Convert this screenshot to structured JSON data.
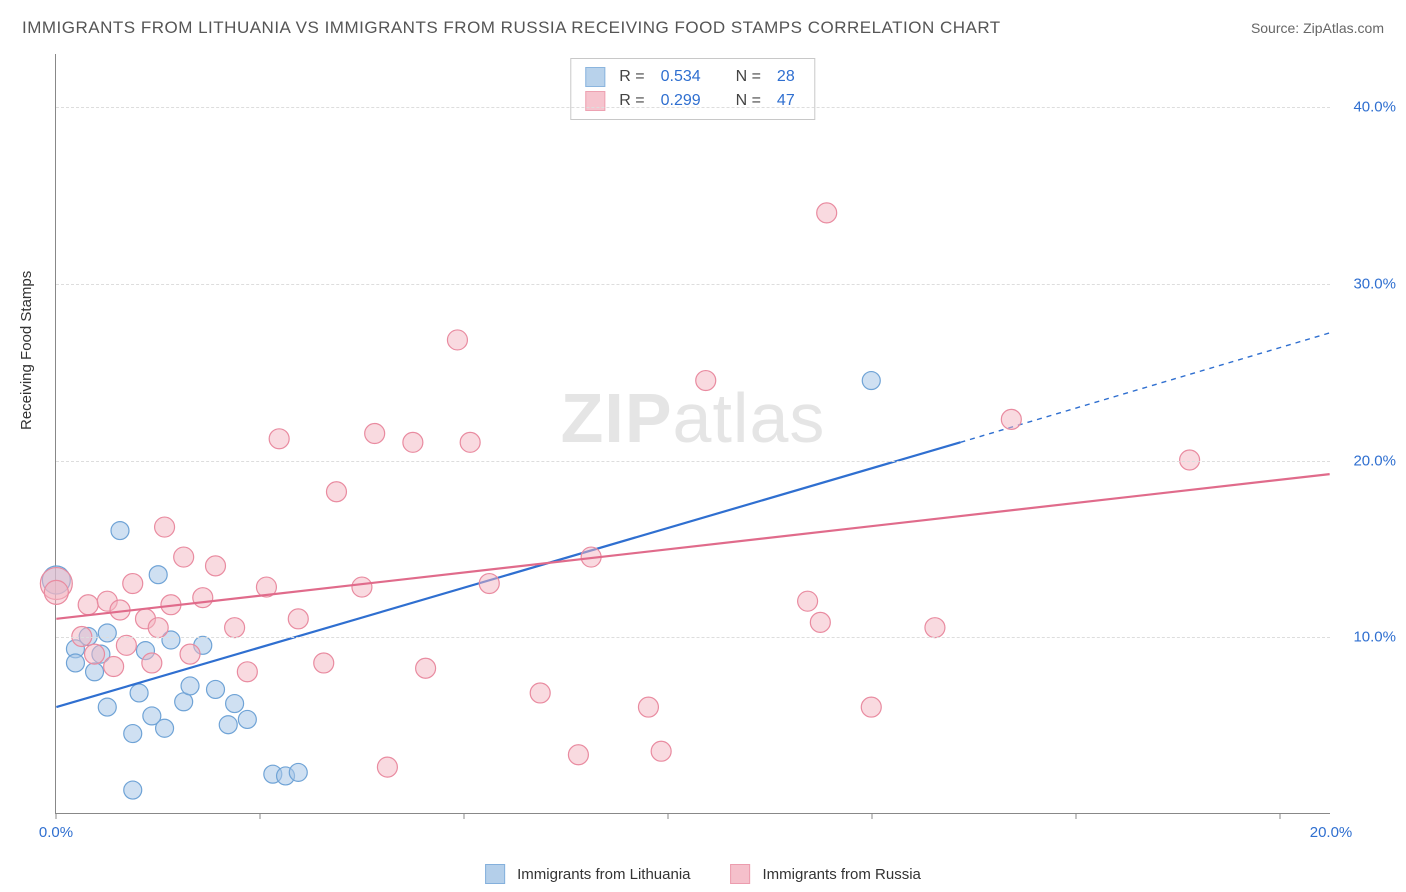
{
  "title": "IMMIGRANTS FROM LITHUANIA VS IMMIGRANTS FROM RUSSIA RECEIVING FOOD STAMPS CORRELATION CHART",
  "source_label": "Source: ",
  "source_name": "ZipAtlas.com",
  "yaxis_title": "Receiving Food Stamps",
  "watermark_bold": "ZIP",
  "watermark_rest": "atlas",
  "chart": {
    "type": "scatter",
    "xlim": [
      0,
      20
    ],
    "ylim": [
      0,
      43
    ],
    "xticks": [
      0,
      3.2,
      6.4,
      9.6,
      12.8,
      16,
      19.2
    ],
    "xtick_labels_shown": {
      "0": "0.0%",
      "20": "20.0%"
    },
    "yticks": [
      10,
      20,
      30,
      40
    ],
    "ytick_labels": [
      "10.0%",
      "20.0%",
      "30.0%",
      "40.0%"
    ],
    "axis_label_color": "#2f6fd0",
    "grid_color": "#dddddd",
    "background_color": "#ffffff",
    "series": [
      {
        "name": "Immigrants from Lithuania",
        "marker_fill": "#a7c7e7",
        "marker_fill_opacity": 0.55,
        "marker_stroke": "#6fa3d6",
        "marker_r": 9,
        "line_color": "#2f6fd0",
        "line_width": 2.2,
        "trend": {
          "x1": 0,
          "y1": 6.0,
          "x2": 14.2,
          "y2": 21.0,
          "x2_dash": 20,
          "y2_dash": 27.2
        },
        "R": "0.534",
        "N": "28",
        "points": [
          [
            0.0,
            13.2,
            14
          ],
          [
            0.3,
            9.3,
            9
          ],
          [
            0.3,
            8.5,
            9
          ],
          [
            0.5,
            10.0,
            9
          ],
          [
            0.6,
            8.0,
            9
          ],
          [
            0.7,
            9.0,
            9
          ],
          [
            0.8,
            10.2,
            9
          ],
          [
            1.0,
            16.0,
            9
          ],
          [
            1.2,
            4.5,
            9
          ],
          [
            1.3,
            6.8,
            9
          ],
          [
            1.4,
            9.2,
            9
          ],
          [
            1.5,
            5.5,
            9
          ],
          [
            1.6,
            13.5,
            9
          ],
          [
            1.7,
            4.8,
            9
          ],
          [
            1.8,
            9.8,
            9
          ],
          [
            2.0,
            6.3,
            9
          ],
          [
            2.1,
            7.2,
            9
          ],
          [
            2.3,
            9.5,
            9
          ],
          [
            2.5,
            7.0,
            9
          ],
          [
            2.7,
            5.0,
            9
          ],
          [
            2.8,
            6.2,
            9
          ],
          [
            3.0,
            5.3,
            9
          ],
          [
            3.4,
            2.2,
            9
          ],
          [
            3.6,
            2.1,
            9
          ],
          [
            3.8,
            2.3,
            9
          ],
          [
            1.2,
            1.3,
            9
          ],
          [
            0.8,
            6.0,
            9
          ],
          [
            12.8,
            24.5,
            9
          ]
        ]
      },
      {
        "name": "Immigrants from Russia",
        "marker_fill": "#f4b6c2",
        "marker_fill_opacity": 0.5,
        "marker_stroke": "#e98ba0",
        "marker_r": 10,
        "line_color": "#e06b8b",
        "line_width": 2.2,
        "trend": {
          "x1": 0,
          "y1": 11.0,
          "x2": 20,
          "y2": 19.2
        },
        "R": "0.299",
        "N": "47",
        "points": [
          [
            0.0,
            13.0,
            16
          ],
          [
            0.0,
            12.5,
            12
          ],
          [
            0.4,
            10.0,
            10
          ],
          [
            0.5,
            11.8,
            10
          ],
          [
            0.6,
            9.0,
            10
          ],
          [
            0.8,
            12.0,
            10
          ],
          [
            0.9,
            8.3,
            10
          ],
          [
            1.0,
            11.5,
            10
          ],
          [
            1.1,
            9.5,
            10
          ],
          [
            1.2,
            13.0,
            10
          ],
          [
            1.4,
            11.0,
            10
          ],
          [
            1.5,
            8.5,
            10
          ],
          [
            1.6,
            10.5,
            10
          ],
          [
            1.7,
            16.2,
            10
          ],
          [
            1.8,
            11.8,
            10
          ],
          [
            2.0,
            14.5,
            10
          ],
          [
            2.1,
            9.0,
            10
          ],
          [
            2.3,
            12.2,
            10
          ],
          [
            2.5,
            14.0,
            10
          ],
          [
            2.8,
            10.5,
            10
          ],
          [
            3.0,
            8.0,
            10
          ],
          [
            3.3,
            12.8,
            10
          ],
          [
            3.5,
            21.2,
            10
          ],
          [
            3.8,
            11.0,
            10
          ],
          [
            4.2,
            8.5,
            10
          ],
          [
            4.4,
            18.2,
            10
          ],
          [
            5.0,
            21.5,
            10
          ],
          [
            5.2,
            2.6,
            10
          ],
          [
            5.6,
            21.0,
            10
          ],
          [
            5.8,
            8.2,
            10
          ],
          [
            6.3,
            26.8,
            10
          ],
          [
            6.5,
            21.0,
            10
          ],
          [
            6.8,
            13.0,
            10
          ],
          [
            7.6,
            6.8,
            10
          ],
          [
            8.2,
            3.3,
            10
          ],
          [
            8.4,
            14.5,
            10
          ],
          [
            9.3,
            6.0,
            10
          ],
          [
            9.5,
            3.5,
            10
          ],
          [
            10.2,
            24.5,
            10
          ],
          [
            11.8,
            12.0,
            10
          ],
          [
            12.0,
            10.8,
            10
          ],
          [
            12.1,
            34.0,
            10
          ],
          [
            12.8,
            6.0,
            10
          ],
          [
            13.8,
            10.5,
            10
          ],
          [
            15.0,
            22.3,
            10
          ],
          [
            17.8,
            20.0,
            10
          ],
          [
            4.8,
            12.8,
            10
          ]
        ]
      }
    ]
  },
  "legend_top": {
    "r_label": "R =",
    "n_label": "N ="
  },
  "legend_bottom": [
    {
      "swatch_fill": "#a7c7e7",
      "swatch_stroke": "#6fa3d6",
      "label": "Immigrants from Lithuania"
    },
    {
      "swatch_fill": "#f4b6c2",
      "swatch_stroke": "#e98ba0",
      "label": "Immigrants from Russia"
    }
  ]
}
